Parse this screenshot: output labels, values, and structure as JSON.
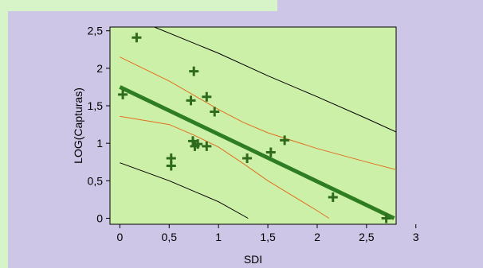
{
  "chart_data": {
    "type": "scatter",
    "title": "",
    "xlabel": "SDI",
    "ylabel": "LOG(Capturas)",
    "xlim": [
      -0.1,
      2.8
    ],
    "ylim": [
      -0.08,
      2.55
    ],
    "x_ticks": [
      "0",
      "0,5",
      "1",
      "1,5",
      "2",
      "2,5",
      "3"
    ],
    "x_tick_values": [
      0,
      0.5,
      1,
      1.5,
      2,
      2.5,
      3
    ],
    "y_ticks": [
      "0",
      "0,5",
      "1",
      "1,5",
      "2",
      "2,5"
    ],
    "y_tick_values": [
      0,
      0.5,
      1,
      1.5,
      2,
      2.5
    ],
    "grid": false,
    "legend": "none",
    "colors": {
      "plot_bg": "#cdf0a8",
      "page_bg": "#cdc6e6",
      "points": "#2e6b1d",
      "fit_line": "#2e7d22",
      "confidence": "#e07020",
      "prediction": "#000000"
    },
    "points": [
      {
        "x": 0.03,
        "y": 1.65
      },
      {
        "x": 0.17,
        "y": 2.41
      },
      {
        "x": 0.52,
        "y": 0.8
      },
      {
        "x": 0.52,
        "y": 0.7
      },
      {
        "x": 0.72,
        "y": 1.57
      },
      {
        "x": 0.75,
        "y": 1.96
      },
      {
        "x": 0.74,
        "y": 1.03
      },
      {
        "x": 0.76,
        "y": 0.96
      },
      {
        "x": 0.79,
        "y": 0.99
      },
      {
        "x": 0.88,
        "y": 1.62
      },
      {
        "x": 0.88,
        "y": 0.96
      },
      {
        "x": 0.96,
        "y": 1.42
      },
      {
        "x": 1.29,
        "y": 0.8
      },
      {
        "x": 1.53,
        "y": 0.88
      },
      {
        "x": 1.67,
        "y": 1.04
      },
      {
        "x": 2.16,
        "y": 0.28
      },
      {
        "x": 2.7,
        "y": 0.0
      }
    ],
    "fit_line": [
      [
        0.0,
        1.75
      ],
      [
        2.78,
        0.0
      ]
    ],
    "confidence_upper": [
      [
        0.0,
        2.15
      ],
      [
        0.5,
        1.83
      ],
      [
        1.0,
        1.45
      ],
      [
        1.25,
        1.28
      ],
      [
        1.5,
        1.14
      ],
      [
        2.0,
        0.93
      ],
      [
        2.5,
        0.75
      ],
      [
        3.0,
        0.58
      ]
    ],
    "confidence_lower": [
      [
        0.0,
        1.36
      ],
      [
        0.5,
        1.25
      ],
      [
        0.75,
        1.11
      ],
      [
        1.0,
        0.95
      ],
      [
        1.25,
        0.73
      ],
      [
        1.5,
        0.5
      ],
      [
        2.0,
        0.1
      ],
      [
        2.12,
        0.0
      ]
    ],
    "prediction_upper": [
      [
        0.35,
        2.55
      ],
      [
        1.0,
        2.2
      ],
      [
        1.5,
        1.9
      ],
      [
        2.0,
        1.62
      ],
      [
        2.5,
        1.33
      ],
      [
        3.0,
        1.03
      ]
    ],
    "prediction_lower": [
      [
        0.0,
        0.74
      ],
      [
        0.5,
        0.5
      ],
      [
        1.0,
        0.22
      ],
      [
        1.3,
        0.0
      ]
    ]
  }
}
